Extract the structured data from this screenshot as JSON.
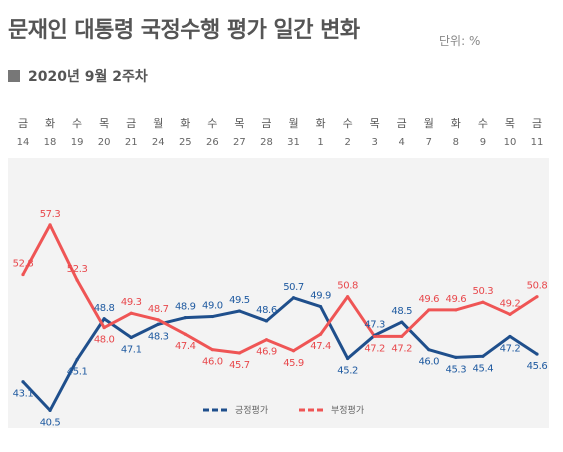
{
  "header": {
    "title": "문재인 대통령 국정수행 평가 일간 변화",
    "unit": "단위: %",
    "subtitle": "2020년 9월 2주차"
  },
  "colors": {
    "positive": "#1f4f8c",
    "negative": "#ef5555"
  },
  "chart_data": {
    "type": "line",
    "categories": [
      "14",
      "18",
      "19",
      "20",
      "21",
      "24",
      "25",
      "26",
      "27",
      "28",
      "31",
      "1",
      "2",
      "3",
      "4",
      "7",
      "8",
      "9",
      "10",
      "11"
    ],
    "weekdays": [
      "금",
      "화",
      "수",
      "목",
      "금",
      "월",
      "화",
      "수",
      "목",
      "금",
      "월",
      "화",
      "수",
      "목",
      "금",
      "월",
      "화",
      "수",
      "목",
      "금"
    ],
    "series": [
      {
        "name": "긍정평가",
        "values": [
          43.1,
          40.5,
          45.1,
          48.8,
          47.1,
          48.3,
          48.9,
          49.0,
          49.5,
          48.6,
          50.7,
          49.9,
          45.2,
          47.3,
          48.5,
          46.0,
          45.3,
          45.4,
          47.2,
          45.6
        ]
      },
      {
        "name": "부정평가",
        "values": [
          52.8,
          57.3,
          52.3,
          48.0,
          49.3,
          48.7,
          47.4,
          46.0,
          45.7,
          46.9,
          45.9,
          47.4,
          50.8,
          47.2,
          47.2,
          49.6,
          49.6,
          50.3,
          49.2,
          50.8
        ]
      }
    ],
    "ylim": [
      38,
      62
    ],
    "legend": "bottom-center",
    "grid": false
  }
}
